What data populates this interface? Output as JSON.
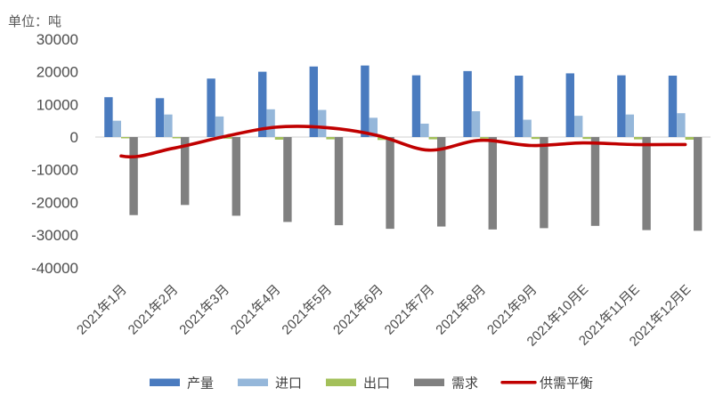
{
  "chart": {
    "unit_label": "单位：吨"
  },
  "chart_data": {
    "type": "bar",
    "title": "",
    "xlabel": "",
    "ylabel": "单位：吨",
    "ylim": [
      -40000,
      30000
    ],
    "y_tick_step": 10000,
    "y_ticks": [
      "30000",
      "20000",
      "10000",
      "0",
      "-10000",
      "-20000",
      "-30000",
      "-40000"
    ],
    "grid": false,
    "legend_position": "bottom",
    "categories": [
      "2021年1月",
      "2021年2月",
      "2021年3月",
      "2021年4月",
      "2021年5月",
      "2021年6月",
      "2021年7月",
      "2021年8月",
      "2021年9月",
      "2021年10月E",
      "2021年11月E",
      "2021年12月E"
    ],
    "series": [
      {
        "name": "产量",
        "kind": "bar",
        "color": "#4a7bbf",
        "values": [
          12200,
          11900,
          17900,
          20000,
          21600,
          21900,
          18900,
          20200,
          18800,
          19500,
          18900,
          18800
        ]
      },
      {
        "name": "进口",
        "kind": "bar",
        "color": "#95b7da",
        "values": [
          5000,
          6900,
          6300,
          8500,
          8300,
          5900,
          4100,
          7900,
          5300,
          6500,
          6900,
          7300
        ]
      },
      {
        "name": "出口",
        "kind": "bar",
        "color": "#a3c05a",
        "values": [
          -400,
          -400,
          -500,
          -800,
          -700,
          -900,
          -700,
          -500,
          -600,
          -600,
          -700,
          -800
        ]
      },
      {
        "name": "需求",
        "kind": "bar",
        "color": "#808080",
        "values": [
          -23900,
          -20800,
          -24100,
          -26000,
          -27000,
          -28100,
          -27400,
          -28300,
          -27900,
          -27200,
          -28500,
          -28700
        ]
      },
      {
        "name": "供需平衡",
        "kind": "line",
        "color": "#c00000",
        "values": [
          -5800,
          -3500,
          100,
          3000,
          2900,
          500,
          -4000,
          -1000,
          -2600,
          -1800,
          -2300,
          -2300
        ]
      }
    ]
  },
  "legend": {
    "items": [
      {
        "label": "产量",
        "color": "#4a7bbf",
        "marker": "bar"
      },
      {
        "label": "进口",
        "color": "#95b7da",
        "marker": "bar"
      },
      {
        "label": "出口",
        "color": "#a3c05a",
        "marker": "bar"
      },
      {
        "label": "需求",
        "color": "#808080",
        "marker": "bar"
      },
      {
        "label": "供需平衡",
        "color": "#c00000",
        "marker": "line"
      }
    ]
  },
  "colors": {
    "axis_text": "#4d4d4d",
    "unit_text": "#595959",
    "x_label_text": "#4a4a4a",
    "legend_text": "#404040",
    "zero_line": "#d9d9d9",
    "background": "#ffffff"
  }
}
